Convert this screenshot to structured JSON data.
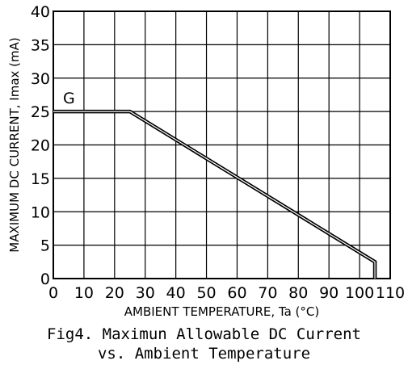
{
  "chart_data": {
    "type": "line",
    "xlabel": "AMBIENT TEMPERATURE, Ta (°C)",
    "ylabel": "MAXIMUM DC CURRENT, Imax (mA)",
    "xlim": [
      0,
      110
    ],
    "ylim": [
      0,
      40
    ],
    "x_ticks": [
      0,
      10,
      20,
      30,
      40,
      50,
      60,
      70,
      80,
      90,
      100,
      110
    ],
    "y_ticks": [
      0,
      5,
      10,
      15,
      20,
      25,
      30,
      35,
      40
    ],
    "grid": true,
    "series": [
      {
        "name": "G",
        "x": [
          0,
          25,
          105,
          105
        ],
        "y": [
          25,
          25,
          2.5,
          0
        ]
      }
    ]
  },
  "caption": {
    "line1": "Fig4. Maximun Allowable DC Current",
    "line2": "vs. Ambient Temperature"
  }
}
